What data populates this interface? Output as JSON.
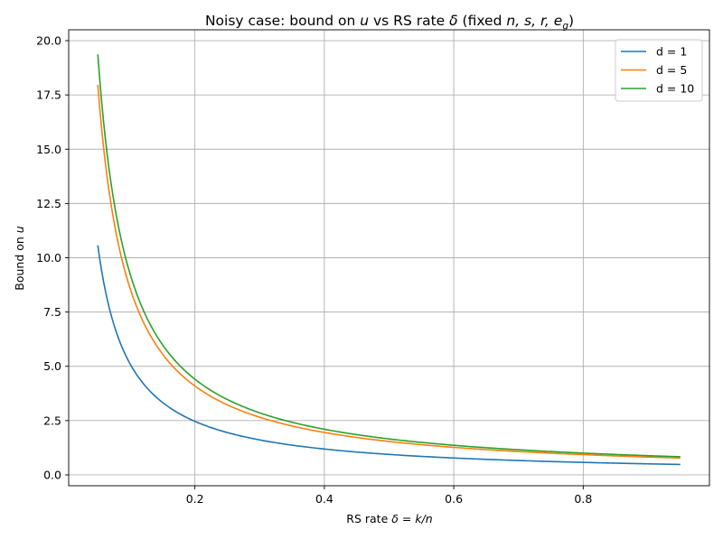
{
  "chart_data": {
    "type": "line",
    "title": "Noisy case: bound on u vs RS rate δ (fixed n, s, r, e_g)",
    "title_parts": {
      "prefix": "Noisy case: bound on ",
      "var_u": "u",
      "middle": " vs RS rate ",
      "var_delta": "δ",
      "paren_open": " (fixed ",
      "vars_fixed": "n, s, r, e",
      "subscript": "g",
      "paren_close": ")"
    },
    "xlabel": "RS rate δ = k/n",
    "xlabel_parts": {
      "prefix": "RS rate ",
      "math": "δ = k/n"
    },
    "ylabel": "Bound on u",
    "ylabel_parts": {
      "prefix": "Bound on ",
      "math": "u"
    },
    "xlim": [
      0.005,
      0.995
    ],
    "ylim": [
      -0.5,
      20.5
    ],
    "xticks": [
      0.2,
      0.4,
      0.6,
      0.8
    ],
    "xtick_labels": [
      "0.2",
      "0.4",
      "0.6",
      "0.8"
    ],
    "yticks": [
      0,
      2.5,
      5,
      7.5,
      10,
      12.5,
      15,
      17.5,
      20
    ],
    "ytick_labels": [
      "0.0",
      "2.5",
      "5.0",
      "7.5",
      "10.0",
      "12.5",
      "15.0",
      "17.5",
      "20.0"
    ],
    "grid": true,
    "legend_position": "top-right",
    "x_range": [
      0.05,
      0.95
    ],
    "curve_form": "y = a / x^p",
    "series": [
      {
        "name": "d = 1",
        "color": "#1f77b4",
        "a": 0.455,
        "p": 1.05
      },
      {
        "name": "d = 5",
        "color": "#ff7f0e",
        "a": 0.735,
        "p": 1.067
      },
      {
        "name": "d = 10",
        "color": "#2ca02c",
        "a": 0.79,
        "p": 1.068
      }
    ]
  }
}
